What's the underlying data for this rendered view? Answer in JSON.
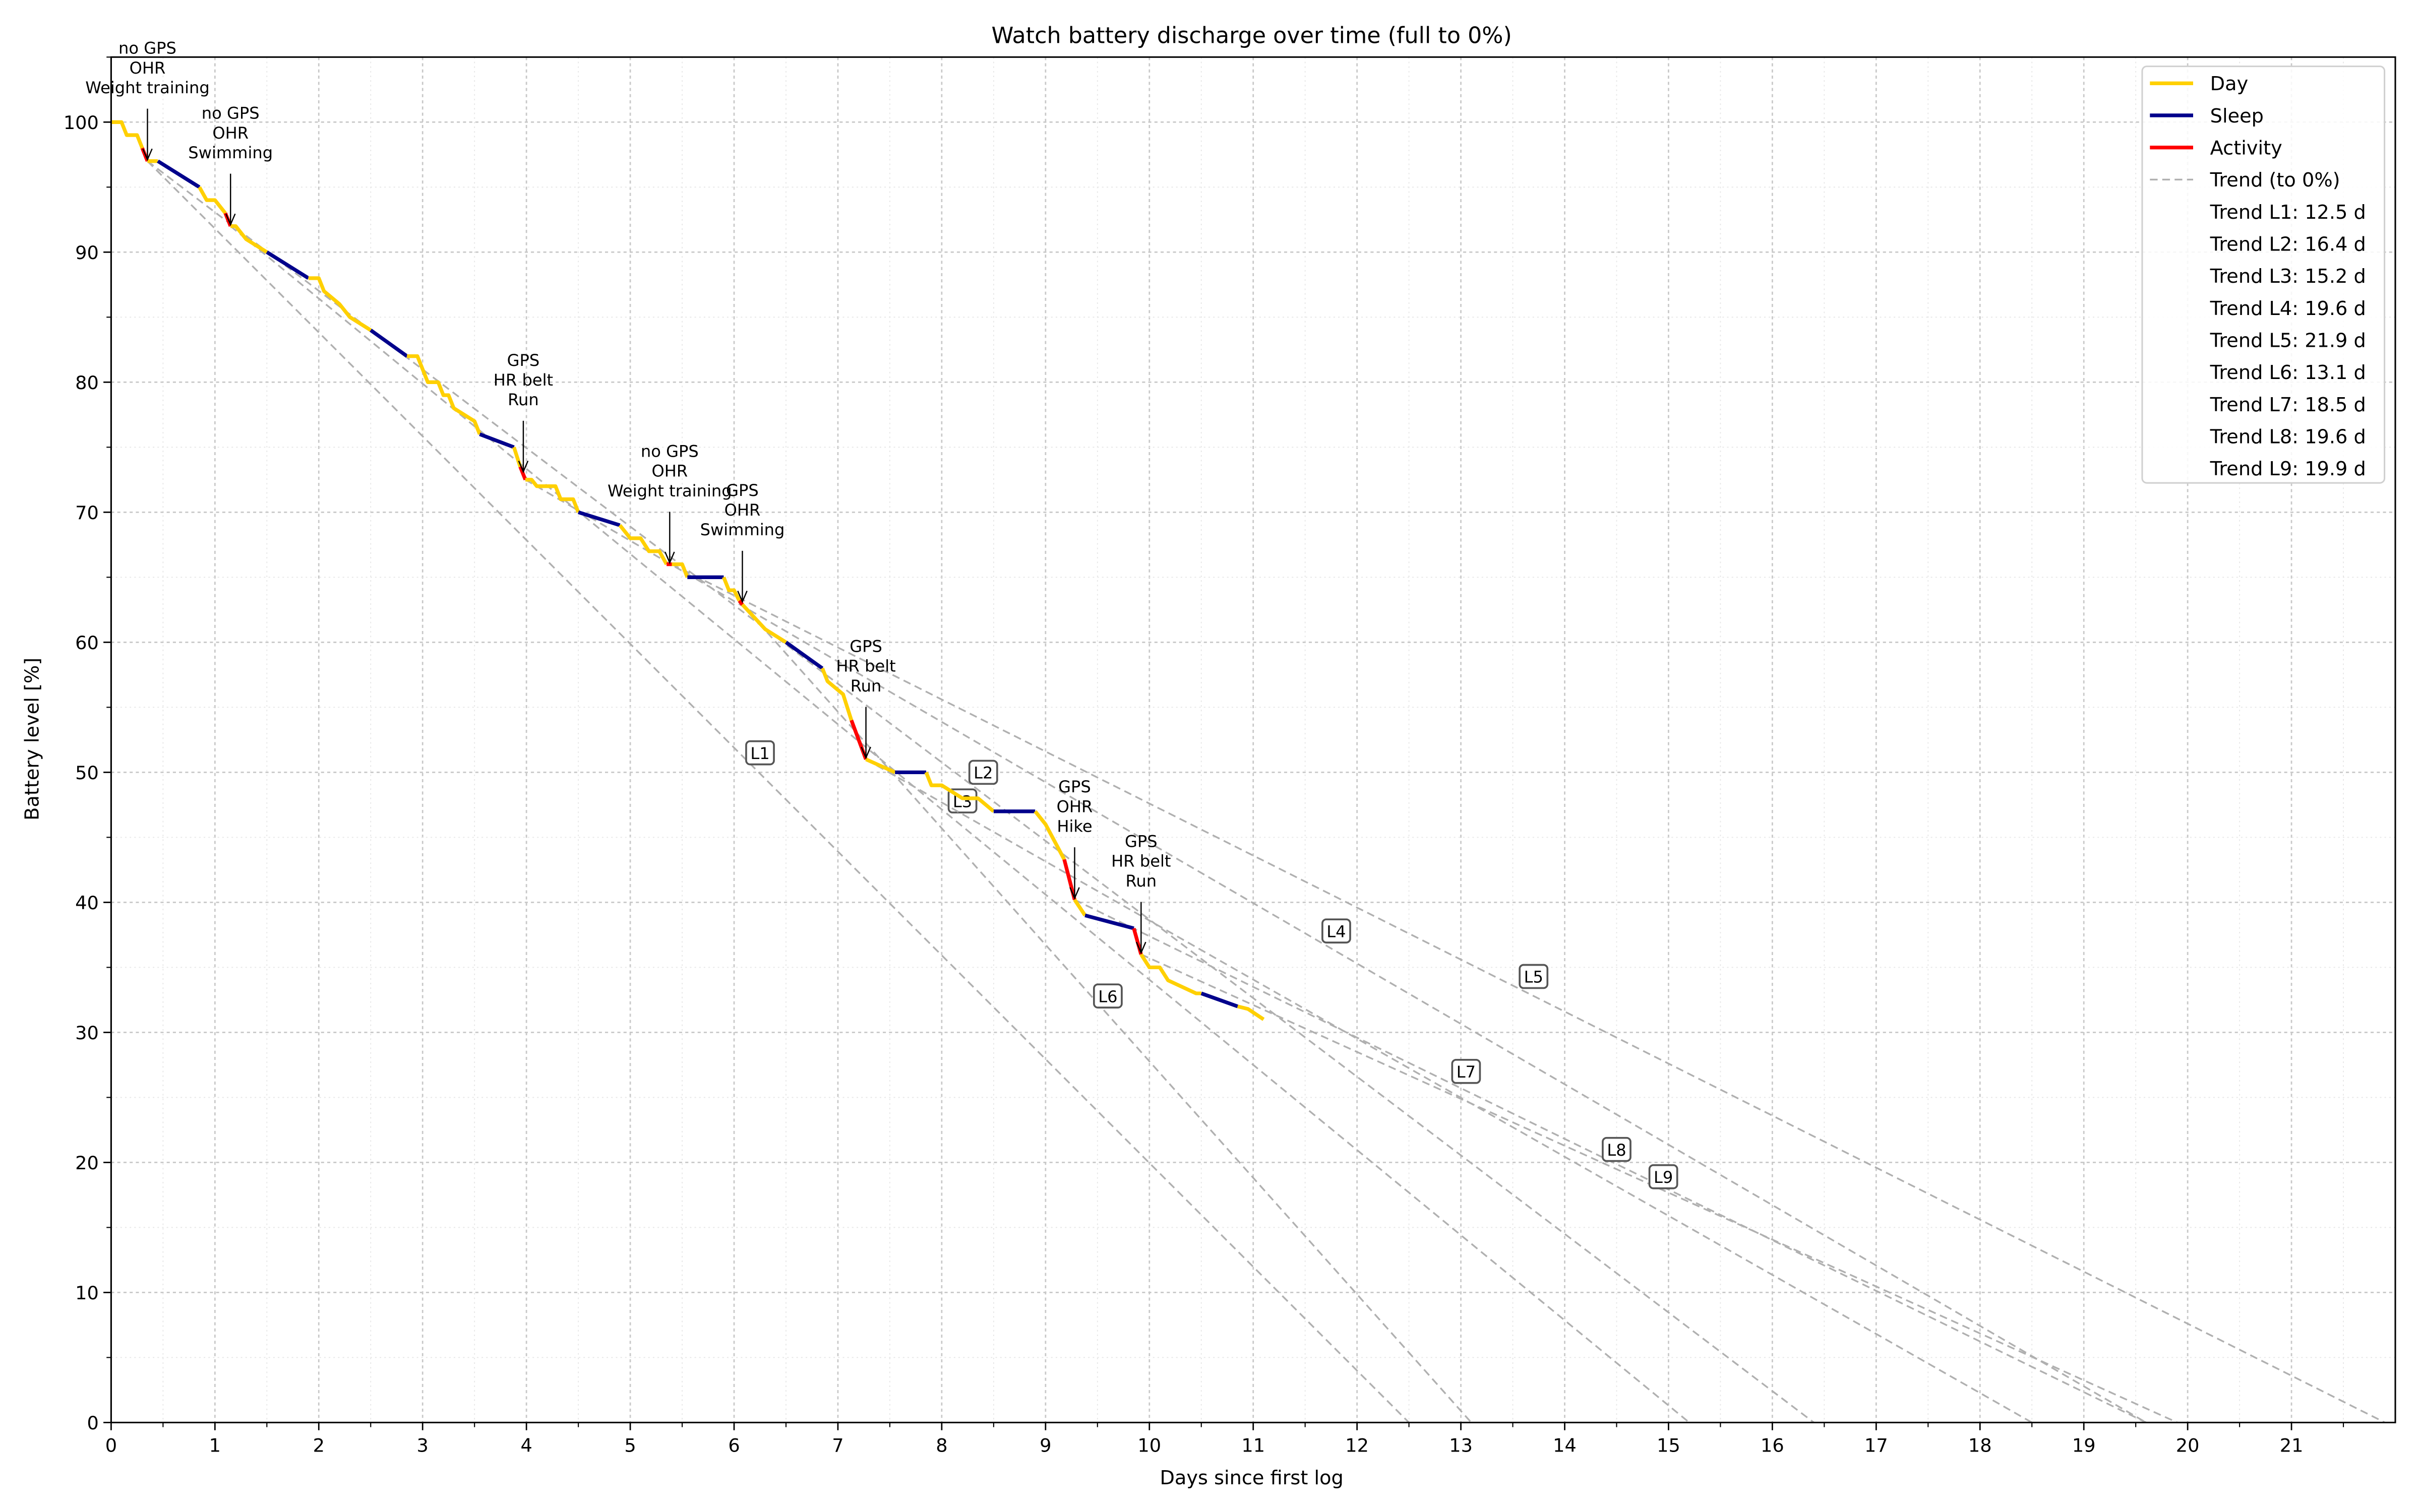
{
  "chart_data": {
    "type": "line",
    "title": "Watch battery discharge over time (full to 0%)",
    "xlabel": "Days since first log",
    "ylabel": "Battery level [%]",
    "xlim": [
      0,
      22
    ],
    "ylim": [
      0,
      105
    ],
    "xticks": [
      0,
      1,
      2,
      3,
      4,
      5,
      6,
      7,
      8,
      9,
      10,
      11,
      12,
      13,
      14,
      15,
      16,
      17,
      18,
      19,
      20,
      21
    ],
    "yticks": [
      0,
      10,
      20,
      30,
      40,
      50,
      60,
      70,
      80,
      90,
      100
    ],
    "grid": true,
    "legend_position": "top-right",
    "colors": {
      "Day": "#ffd000",
      "Sleep": "#00008b",
      "Activity": "#ff0000",
      "Trend": "#b0b0b0"
    },
    "legend": [
      "Day",
      "Sleep",
      "Activity",
      "Trend (to 0%)",
      "Trend L1: 12.5 d",
      "Trend L2: 16.4 d",
      "Trend L3: 15.2 d",
      "Trend L4: 19.6 d",
      "Trend L5: 21.9 d",
      "Trend L6: 13.1 d",
      "Trend L7: 18.5 d",
      "Trend L8: 19.6 d",
      "Trend L9: 19.9 d"
    ],
    "segments": [
      {
        "type": "Day",
        "points": [
          [
            0,
            100
          ],
          [
            0.1,
            100
          ],
          [
            0.15,
            99
          ],
          [
            0.25,
            99
          ],
          [
            0.3,
            98
          ]
        ]
      },
      {
        "type": "Activity",
        "points": [
          [
            0.3,
            98
          ],
          [
            0.35,
            97
          ]
        ]
      },
      {
        "type": "Day",
        "points": [
          [
            0.35,
            97
          ],
          [
            0.45,
            97
          ]
        ]
      },
      {
        "type": "Sleep",
        "points": [
          [
            0.45,
            97
          ],
          [
            0.85,
            95
          ]
        ]
      },
      {
        "type": "Day",
        "points": [
          [
            0.85,
            95
          ],
          [
            0.92,
            94
          ],
          [
            1.0,
            94
          ],
          [
            1.1,
            93
          ]
        ]
      },
      {
        "type": "Activity",
        "points": [
          [
            1.1,
            93
          ],
          [
            1.15,
            92
          ]
        ]
      },
      {
        "type": "Day",
        "points": [
          [
            1.15,
            92
          ],
          [
            1.2,
            92
          ],
          [
            1.3,
            91
          ],
          [
            1.5,
            90
          ]
        ]
      },
      {
        "type": "Sleep",
        "points": [
          [
            1.5,
            90
          ],
          [
            1.9,
            88
          ]
        ]
      },
      {
        "type": "Day",
        "points": [
          [
            1.9,
            88
          ],
          [
            2.0,
            88
          ],
          [
            2.05,
            87
          ],
          [
            2.2,
            86
          ],
          [
            2.3,
            85
          ],
          [
            2.5,
            84
          ]
        ]
      },
      {
        "type": "Sleep",
        "points": [
          [
            2.5,
            84
          ],
          [
            2.85,
            82
          ]
        ]
      },
      {
        "type": "Day",
        "points": [
          [
            2.85,
            82
          ],
          [
            2.95,
            82
          ],
          [
            3.05,
            80
          ],
          [
            3.15,
            80
          ],
          [
            3.2,
            79
          ],
          [
            3.25,
            79
          ],
          [
            3.3,
            78
          ],
          [
            3.5,
            77
          ],
          [
            3.55,
            76
          ]
        ]
      },
      {
        "type": "Sleep",
        "points": [
          [
            3.55,
            76
          ],
          [
            3.88,
            75
          ]
        ]
      },
      {
        "type": "Day",
        "points": [
          [
            3.88,
            75
          ],
          [
            3.94,
            73.5
          ]
        ]
      },
      {
        "type": "Activity",
        "points": [
          [
            3.94,
            73.5
          ],
          [
            3.99,
            72.5
          ]
        ]
      },
      {
        "type": "Day",
        "points": [
          [
            3.99,
            72.5
          ],
          [
            4.05,
            72.5
          ],
          [
            4.1,
            72
          ],
          [
            4.28,
            72
          ],
          [
            4.33,
            71
          ],
          [
            4.45,
            71
          ],
          [
            4.5,
            70
          ]
        ]
      },
      {
        "type": "Sleep",
        "points": [
          [
            4.5,
            70
          ],
          [
            4.9,
            69
          ]
        ]
      },
      {
        "type": "Day",
        "points": [
          [
            4.9,
            69
          ],
          [
            5.0,
            68
          ],
          [
            5.1,
            68
          ],
          [
            5.18,
            67
          ],
          [
            5.28,
            67
          ],
          [
            5.35,
            66
          ]
        ]
      },
      {
        "type": "Activity",
        "points": [
          [
            5.35,
            66
          ],
          [
            5.4,
            66
          ]
        ]
      },
      {
        "type": "Day",
        "points": [
          [
            5.4,
            66
          ],
          [
            5.5,
            66
          ],
          [
            5.55,
            65
          ]
        ]
      },
      {
        "type": "Sleep",
        "points": [
          [
            5.55,
            65
          ],
          [
            5.9,
            65
          ]
        ]
      },
      {
        "type": "Day",
        "points": [
          [
            5.9,
            65
          ],
          [
            5.95,
            64
          ],
          [
            6.0,
            64
          ],
          [
            6.05,
            63.2
          ]
        ]
      },
      {
        "type": "Activity",
        "points": [
          [
            6.05,
            63.2
          ],
          [
            6.08,
            62.9
          ]
        ]
      },
      {
        "type": "Day",
        "points": [
          [
            6.08,
            62.9
          ],
          [
            6.3,
            61
          ],
          [
            6.5,
            60
          ]
        ]
      },
      {
        "type": "Sleep",
        "points": [
          [
            6.5,
            60
          ],
          [
            6.85,
            58
          ]
        ]
      },
      {
        "type": "Day",
        "points": [
          [
            6.85,
            58
          ],
          [
            6.9,
            57
          ],
          [
            7.05,
            56
          ],
          [
            7.13,
            54
          ]
        ]
      },
      {
        "type": "Activity",
        "points": [
          [
            7.13,
            54
          ],
          [
            7.27,
            51
          ]
        ]
      },
      {
        "type": "Day",
        "points": [
          [
            7.27,
            51
          ],
          [
            7.55,
            50
          ]
        ]
      },
      {
        "type": "Sleep",
        "points": [
          [
            7.55,
            50
          ],
          [
            7.85,
            50
          ]
        ]
      },
      {
        "type": "Day",
        "points": [
          [
            7.85,
            50
          ],
          [
            7.9,
            49
          ],
          [
            8.0,
            49
          ],
          [
            8.1,
            48.5
          ],
          [
            8.2,
            48
          ],
          [
            8.35,
            48
          ],
          [
            8.5,
            47
          ]
        ]
      },
      {
        "type": "Sleep",
        "points": [
          [
            8.5,
            47
          ],
          [
            8.9,
            47
          ]
        ]
      },
      {
        "type": "Day",
        "points": [
          [
            8.9,
            47
          ],
          [
            9.0,
            46
          ],
          [
            9.1,
            44.5
          ],
          [
            9.18,
            43.3
          ]
        ]
      },
      {
        "type": "Activity",
        "points": [
          [
            9.18,
            43.3
          ],
          [
            9.28,
            40.2
          ]
        ]
      },
      {
        "type": "Day",
        "points": [
          [
            9.28,
            40.2
          ],
          [
            9.38,
            39
          ]
        ]
      },
      {
        "type": "Sleep",
        "points": [
          [
            9.38,
            39
          ],
          [
            9.85,
            38
          ]
        ]
      },
      {
        "type": "Activity",
        "points": [
          [
            9.85,
            38
          ],
          [
            9.92,
            36
          ]
        ]
      },
      {
        "type": "Day",
        "points": [
          [
            9.92,
            36
          ],
          [
            10.0,
            35
          ],
          [
            10.1,
            35
          ],
          [
            10.18,
            34
          ],
          [
            10.45,
            33
          ],
          [
            10.5,
            33
          ]
        ]
      },
      {
        "type": "Sleep",
        "points": [
          [
            10.5,
            33
          ],
          [
            10.85,
            32
          ]
        ]
      },
      {
        "type": "Day",
        "points": [
          [
            10.85,
            32
          ],
          [
            10.95,
            31.8
          ],
          [
            11.1,
            31
          ]
        ]
      }
    ],
    "trends": [
      {
        "label": "L1",
        "days": 12.5,
        "start": [
          0.35,
          97
        ],
        "label_at": [
          6.25,
          51.5
        ]
      },
      {
        "label": "L2",
        "days": 16.4,
        "start": [
          0.35,
          97
        ],
        "label_at": [
          8.4,
          50
        ]
      },
      {
        "label": "L3",
        "days": 15.2,
        "start": [
          1.15,
          92
        ],
        "label_at": [
          8.2,
          47.8
        ]
      },
      {
        "label": "L4",
        "days": 19.6,
        "start": [
          3.99,
          72.5
        ],
        "label_at": [
          11.8,
          37.8
        ]
      },
      {
        "label": "L5",
        "days": 21.9,
        "start": [
          5.4,
          66
        ],
        "label_at": [
          13.7,
          34.3
        ]
      },
      {
        "label": "L6",
        "days": 13.1,
        "start": [
          6.08,
          62.9
        ],
        "label_at": [
          9.6,
          32.8
        ]
      },
      {
        "label": "L7",
        "days": 18.5,
        "start": [
          7.27,
          51
        ],
        "label_at": [
          13.05,
          27
        ]
      },
      {
        "label": "L8",
        "days": 19.6,
        "start": [
          9.28,
          40.2
        ],
        "label_at": [
          14.5,
          21
        ]
      },
      {
        "label": "L9",
        "days": 19.9,
        "start": [
          9.92,
          36
        ],
        "label_at": [
          14.95,
          18.9
        ]
      }
    ],
    "annotations": [
      {
        "lines": [
          "no GPS",
          "OHR",
          "Weight training"
        ],
        "at": [
          0.35,
          97
        ]
      },
      {
        "lines": [
          "no GPS",
          "OHR",
          "Swimming"
        ],
        "at": [
          1.15,
          92
        ]
      },
      {
        "lines": [
          "GPS",
          "HR belt",
          "Run"
        ],
        "at": [
          3.97,
          73
        ]
      },
      {
        "lines": [
          "no GPS",
          "OHR",
          "Weight training"
        ],
        "at": [
          5.38,
          66
        ]
      },
      {
        "lines": [
          "GPS",
          "OHR",
          "Swimming"
        ],
        "at": [
          6.08,
          63
        ]
      },
      {
        "lines": [
          "GPS",
          "HR belt",
          "Run"
        ],
        "at": [
          7.27,
          51
        ]
      },
      {
        "lines": [
          "GPS",
          "OHR",
          "Hike"
        ],
        "at": [
          9.28,
          40.2
        ]
      },
      {
        "lines": [
          "GPS",
          "HR belt",
          "Run"
        ],
        "at": [
          9.92,
          36
        ]
      }
    ]
  }
}
